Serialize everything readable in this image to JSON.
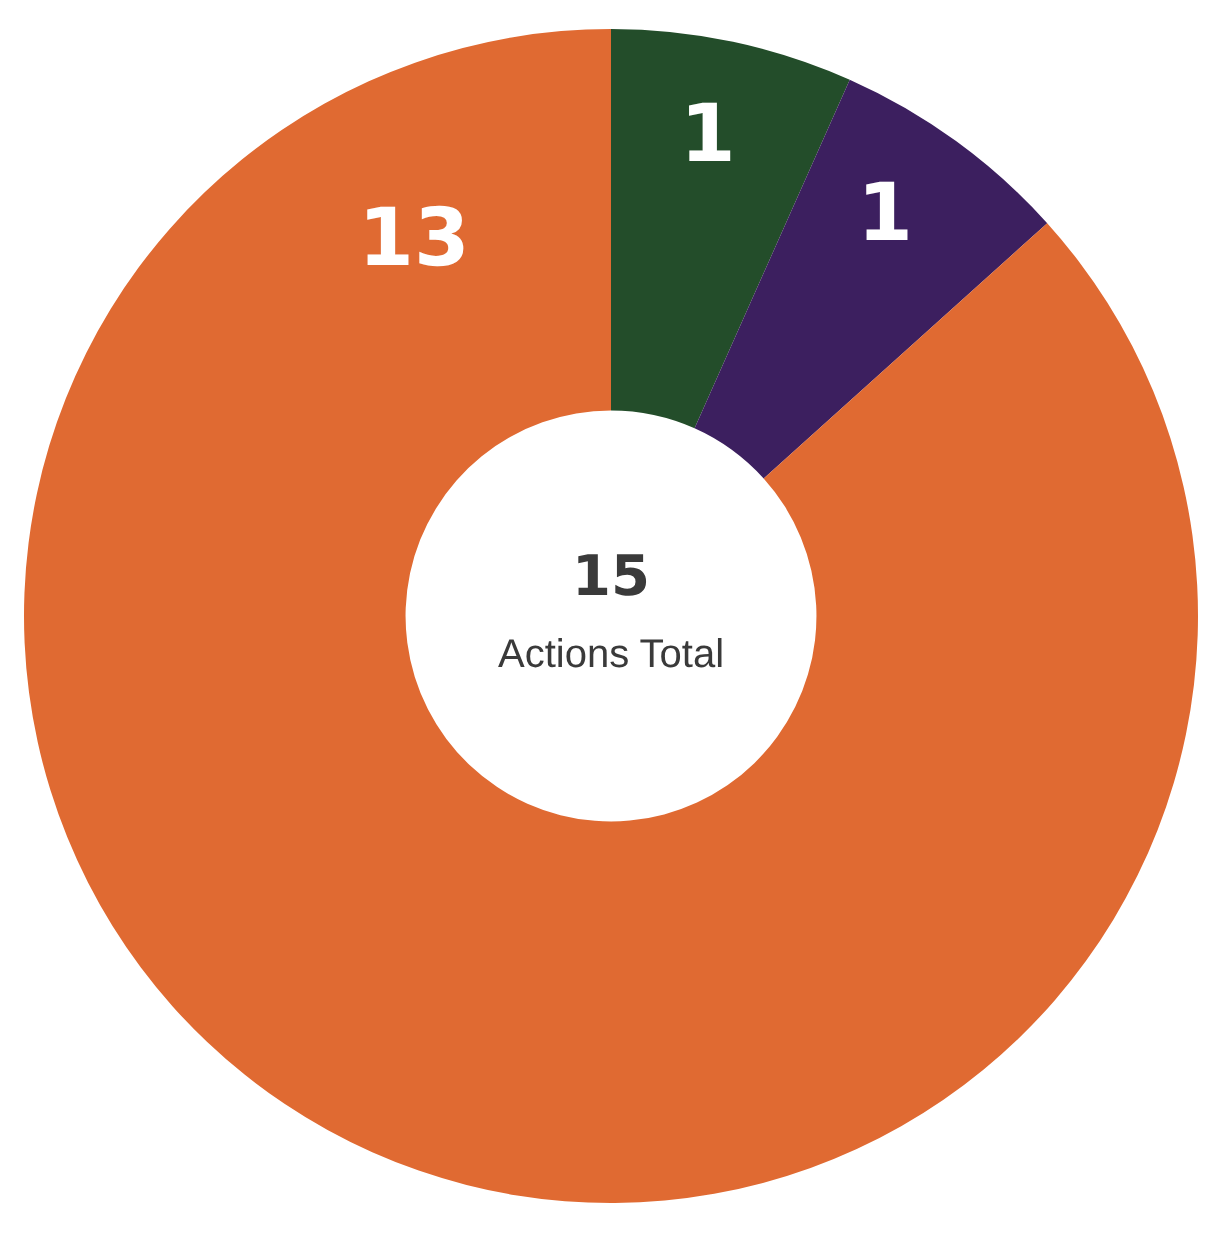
{
  "chart_data": {
    "type": "donut",
    "categories": [
      null,
      null,
      null
    ],
    "values": [
      1,
      1,
      13
    ],
    "colors": [
      "#234d2a",
      "#3c1f5f",
      "#e06a32"
    ],
    "data_labels": true,
    "legend": false,
    "annotations": [
      "15",
      "Actions Total"
    ]
  }
}
